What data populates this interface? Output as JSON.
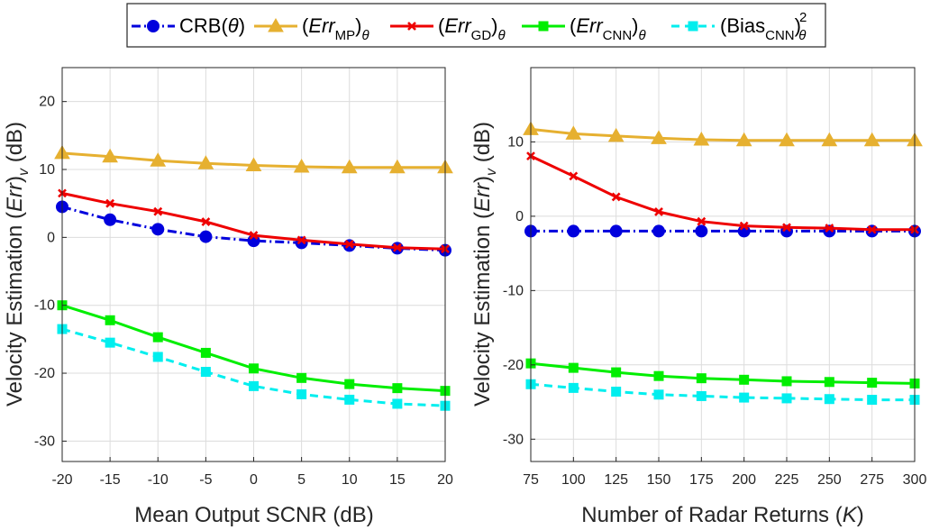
{
  "legend": {
    "entries": [
      {
        "key": "crb",
        "pre": "CRB(",
        "italic": "",
        "mid": "θ",
        "post": ")"
      },
      {
        "key": "mp",
        "pre": "(",
        "italic": "Err",
        "sub": "MP",
        "post": ")",
        "sub2": "θ"
      },
      {
        "key": "gd",
        "pre": "(",
        "italic": "Err",
        "sub": "GD",
        "post": ")",
        "sub2": "θ"
      },
      {
        "key": "cnn",
        "pre": "(",
        "italic": "Err",
        "sub": "CNN",
        "post": ")",
        "sub2": "θ"
      },
      {
        "key": "bias",
        "pre": "(Bias",
        "italic": "",
        "sub": "CNN",
        "post": ")",
        "sub2": "θ",
        "sup": "2"
      }
    ]
  },
  "styles": {
    "crb": {
      "color": "#0000dd",
      "dash": "10,4,2,4",
      "marker": "circle"
    },
    "mp": {
      "color": "#e6b030",
      "dash": "",
      "marker": "triangle"
    },
    "gd": {
      "color": "#ee0000",
      "dash": "",
      "marker": "x"
    },
    "cnn": {
      "color": "#00ee00",
      "dash": "",
      "marker": "square"
    },
    "bias": {
      "color": "#00eeee",
      "dash": "9,6",
      "marker": "square"
    }
  },
  "chart_data": [
    {
      "type": "line",
      "id": "left",
      "xlabel": "Mean Output SCNR (dB)",
      "ylabel_pre": "Velocity Estimation (",
      "ylabel_italic": "Err",
      "ylabel_post": ")",
      "ylabel_sub": "v",
      "ylabel_post2": " (dB)",
      "x": [
        -20,
        -15,
        -10,
        -5,
        0,
        5,
        10,
        15,
        20
      ],
      "xticks": [
        "-20",
        "-15",
        "-10",
        "-5",
        "0",
        "5",
        "10",
        "15",
        "20"
      ],
      "xlim": [
        -20,
        20
      ],
      "ylim": [
        -33,
        25
      ],
      "yticks": [
        -30,
        -20,
        -10,
        0,
        10,
        20
      ],
      "grid": true,
      "series": [
        {
          "key": "crb",
          "name": "CRB(θ)",
          "values": [
            4.5,
            2.6,
            1.2,
            0.1,
            -0.5,
            -0.8,
            -1.2,
            -1.6,
            -1.9
          ]
        },
        {
          "key": "mp",
          "name": "(Err_MP)θ",
          "values": [
            12.4,
            11.9,
            11.3,
            10.9,
            10.6,
            10.4,
            10.3,
            10.3,
            10.3
          ]
        },
        {
          "key": "gd",
          "name": "(Err_GD)θ",
          "values": [
            6.5,
            5.0,
            3.8,
            2.3,
            0.3,
            -0.4,
            -1.0,
            -1.5,
            -1.7
          ]
        },
        {
          "key": "cnn",
          "name": "(Err_CNN)θ",
          "values": [
            -10.0,
            -12.2,
            -14.7,
            -17.0,
            -19.3,
            -20.7,
            -21.6,
            -22.2,
            -22.6
          ]
        },
        {
          "key": "bias",
          "name": "(Bias_CNN)²θ",
          "values": [
            -13.5,
            -15.5,
            -17.6,
            -19.8,
            -21.9,
            -23.1,
            -23.9,
            -24.5,
            -24.8
          ]
        }
      ]
    },
    {
      "type": "line",
      "id": "right",
      "xlabel_pre": "Number of Radar Returns (",
      "xlabel_italic": "K",
      "xlabel_post": ")",
      "ylabel_pre": "Velocity Estimation (",
      "ylabel_italic": "Err",
      "ylabel_post": ")",
      "ylabel_sub": "v",
      "ylabel_post2": " (dB)",
      "x": [
        75,
        100,
        125,
        150,
        175,
        200,
        225,
        250,
        275,
        300
      ],
      "xticks": [
        "75",
        "100",
        "125",
        "150",
        "175",
        "200",
        "225",
        "250",
        "275",
        "300"
      ],
      "xlim": [
        75,
        300
      ],
      "ylim": [
        -33,
        20
      ],
      "yticks": [
        -30,
        -20,
        -10,
        0,
        10
      ],
      "grid": true,
      "series": [
        {
          "key": "crb",
          "name": "CRB(θ)",
          "values": [
            -2.0,
            -2.0,
            -2.0,
            -2.0,
            -2.0,
            -2.0,
            -2.0,
            -2.0,
            -2.0,
            -2.0
          ]
        },
        {
          "key": "mp",
          "name": "(Err_MP)θ",
          "values": [
            11.7,
            11.1,
            10.8,
            10.5,
            10.3,
            10.2,
            10.2,
            10.2,
            10.2,
            10.2
          ]
        },
        {
          "key": "gd",
          "name": "(Err_GD)θ",
          "values": [
            8.1,
            5.4,
            2.6,
            0.6,
            -0.7,
            -1.3,
            -1.5,
            -1.6,
            -1.8,
            -1.8
          ]
        },
        {
          "key": "cnn",
          "name": "(Err_CNN)θ",
          "values": [
            -19.8,
            -20.4,
            -21.0,
            -21.5,
            -21.8,
            -22.0,
            -22.2,
            -22.3,
            -22.4,
            -22.5
          ]
        },
        {
          "key": "bias",
          "name": "(Bias_CNN)²θ",
          "values": [
            -22.6,
            -23.1,
            -23.6,
            -24.0,
            -24.2,
            -24.4,
            -24.5,
            -24.6,
            -24.7,
            -24.7
          ]
        }
      ]
    }
  ]
}
